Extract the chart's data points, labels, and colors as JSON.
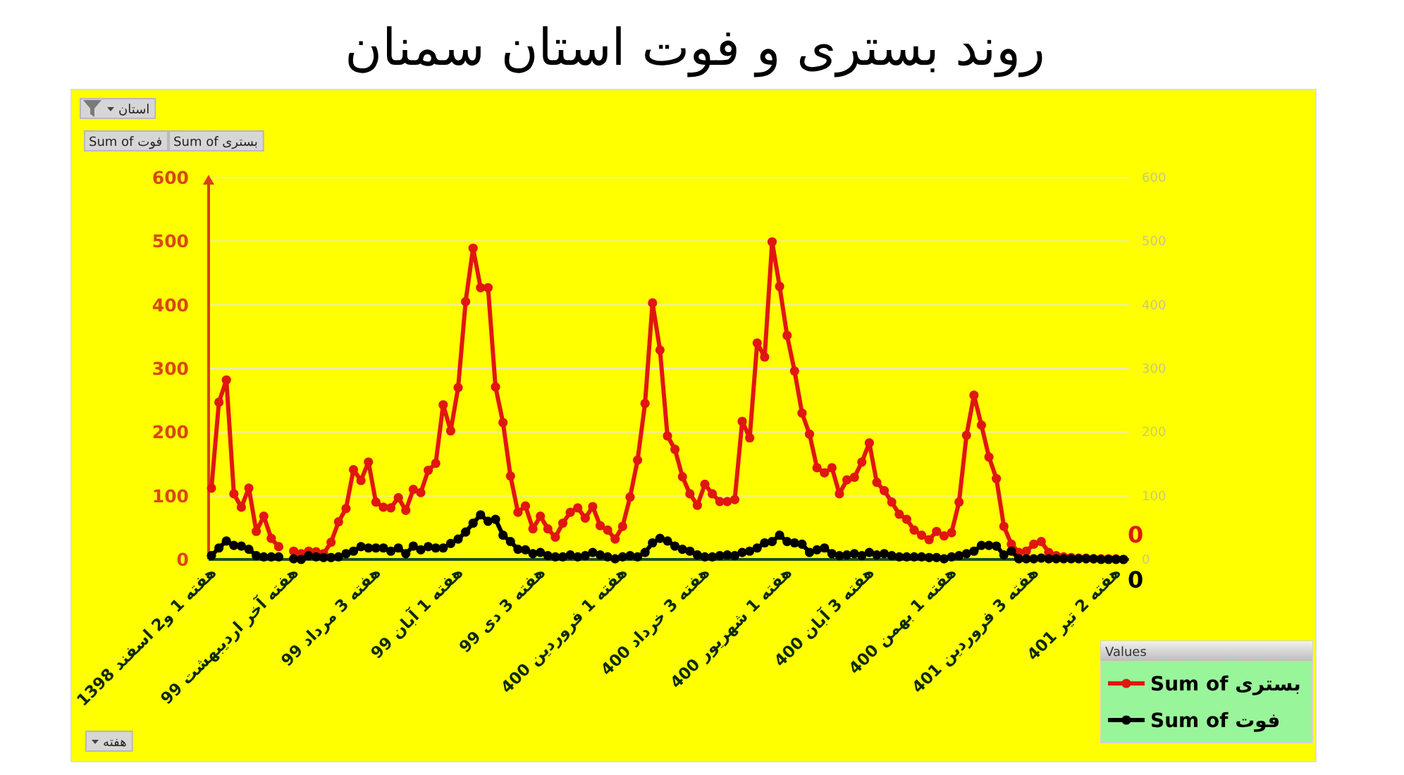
{
  "chart_data": {
    "type": "line",
    "title": "روند بستری و فوت استان سمنان",
    "categories": [
      "هفته 1 و2 اسفند 1398",
      null,
      null,
      null,
      null,
      null,
      null,
      null,
      null,
      null,
      null,
      "هفته آخر اردیبهشت 99",
      null,
      null,
      null,
      null,
      null,
      null,
      null,
      null,
      null,
      null,
      "هفته 3 مرداد 99",
      null,
      null,
      null,
      null,
      null,
      null,
      null,
      null,
      null,
      null,
      "هفته 1 آبان 99",
      null,
      null,
      null,
      null,
      null,
      null,
      null,
      null,
      null,
      null,
      "هفته 3 دی 99",
      null,
      null,
      null,
      null,
      null,
      null,
      null,
      null,
      null,
      null,
      "هفته 1 فروردین 400",
      null,
      null,
      null,
      null,
      null,
      null,
      null,
      null,
      null,
      null,
      "هفته 3 خرداد 400",
      null,
      null,
      null,
      null,
      null,
      null,
      null,
      null,
      null,
      null,
      "هفته 1 شهریور 400",
      null,
      null,
      null,
      null,
      null,
      null,
      null,
      null,
      null,
      null,
      "هفته 3 آبان 400",
      null,
      null,
      null,
      null,
      null,
      null,
      null,
      null,
      null,
      null,
      "هفته 1 بهمن 400",
      null,
      null,
      null,
      null,
      null,
      null,
      null,
      null,
      null,
      null,
      "هفته 3 فروردین 401",
      null,
      null,
      null,
      null,
      null,
      null,
      null,
      null,
      null,
      null,
      "هفته 2 تیر 401",
      null
    ],
    "series": [
      {
        "name": "Sum of بستری",
        "color": "#e0170f",
        "values": [
          112,
          247,
          282,
          103,
          82,
          112,
          44,
          68,
          33,
          20,
          null,
          13,
          9,
          13,
          12,
          9,
          27,
          59,
          80,
          141,
          124,
          153,
          90,
          82,
          81,
          97,
          77,
          110,
          105,
          140,
          151,
          243,
          202,
          270,
          405,
          489,
          427,
          427,
          271,
          215,
          131,
          74,
          84,
          48,
          68,
          48,
          35,
          57,
          74,
          81,
          65,
          83,
          53,
          46,
          32,
          52,
          98,
          156,
          245,
          403,
          329,
          194,
          173,
          130,
          103,
          85,
          118,
          103,
          91,
          91,
          94,
          217,
          191,
          340,
          318,
          499,
          429,
          352,
          296,
          230,
          197,
          144,
          136,
          144,
          103,
          125,
          129,
          153,
          183,
          121,
          108,
          90,
          71,
          63,
          46,
          38,
          31,
          44,
          37,
          42,
          90,
          195,
          258,
          211,
          161,
          127,
          52,
          24,
          11,
          13,
          24,
          28,
          11,
          6,
          4,
          3,
          2,
          2,
          1,
          1,
          1,
          1,
          0
        ],
        "value_labels": [
          null,
          null,
          null,
          null,
          null,
          null,
          null,
          null,
          null,
          null,
          null,
          null,
          null,
          null,
          null,
          null,
          null,
          null,
          null,
          null,
          null,
          null,
          null,
          null,
          null,
          null,
          null,
          null,
          null,
          null,
          null,
          null,
          null,
          null,
          null,
          null,
          null,
          null,
          null,
          null,
          null,
          null,
          null,
          null,
          null,
          null,
          null,
          null,
          null,
          null,
          null,
          null,
          null,
          null,
          null,
          null,
          null,
          null,
          null,
          null,
          null,
          null,
          null,
          null,
          null,
          null,
          null,
          null,
          null,
          null,
          null,
          null,
          null,
          null,
          null,
          null,
          null,
          null,
          null,
          null,
          null,
          null,
          null,
          null,
          null,
          null,
          null,
          null,
          null,
          null,
          null,
          null,
          null,
          null,
          null,
          null,
          null,
          null,
          null,
          null,
          null,
          null,
          null,
          null,
          null,
          null,
          null,
          null,
          null,
          null,
          null,
          null,
          null,
          null,
          null,
          null,
          null,
          null,
          null,
          null,
          null,
          null,
          "0"
        ]
      },
      {
        "name": "Sum of فوت",
        "color": "#000000",
        "values": [
          6,
          18,
          29,
          22,
          21,
          16,
          6,
          4,
          4,
          4,
          null,
          1,
          0,
          6,
          4,
          3,
          3,
          4,
          9,
          13,
          20,
          18,
          18,
          18,
          13,
          18,
          9,
          21,
          15,
          20,
          18,
          18,
          25,
          32,
          43,
          57,
          70,
          60,
          63,
          38,
          28,
          16,
          15,
          9,
          11,
          6,
          4,
          4,
          7,
          4,
          6,
          11,
          7,
          4,
          1,
          4,
          6,
          4,
          11,
          26,
          33,
          29,
          21,
          16,
          13,
          7,
          4,
          4,
          6,
          7,
          6,
          11,
          13,
          18,
          26,
          28,
          38,
          28,
          26,
          24,
          11,
          15,
          18,
          9,
          6,
          7,
          9,
          6,
          11,
          7,
          9,
          6,
          4,
          4,
          4,
          4,
          3,
          3,
          1,
          4,
          6,
          9,
          13,
          22,
          22,
          21,
          7,
          13,
          1,
          1,
          1,
          2,
          1,
          1,
          1,
          1,
          1,
          1,
          1,
          0,
          0,
          0,
          0
        ],
        "value_labels": [
          null,
          null,
          null,
          null,
          null,
          null,
          null,
          null,
          null,
          null,
          null,
          null,
          null,
          null,
          null,
          null,
          null,
          null,
          null,
          null,
          null,
          null,
          null,
          null,
          null,
          null,
          null,
          null,
          null,
          null,
          null,
          null,
          null,
          null,
          null,
          null,
          null,
          null,
          null,
          null,
          null,
          null,
          null,
          null,
          null,
          null,
          null,
          null,
          null,
          null,
          null,
          null,
          null,
          null,
          null,
          null,
          null,
          null,
          null,
          null,
          null,
          null,
          null,
          null,
          null,
          null,
          null,
          null,
          null,
          null,
          null,
          null,
          null,
          null,
          null,
          null,
          null,
          null,
          null,
          null,
          null,
          null,
          null,
          null,
          null,
          null,
          null,
          null,
          null,
          null,
          null,
          null,
          null,
          null,
          null,
          null,
          null,
          null,
          null,
          null,
          null,
          null,
          null,
          null,
          null,
          null,
          null,
          null,
          null,
          null,
          null,
          null,
          null,
          null,
          null,
          null,
          null,
          null,
          null,
          null,
          null,
          null,
          "0"
        ]
      }
    ],
    "ylim": [
      0,
      600
    ],
    "yticks": [
      0,
      100,
      200,
      300,
      400,
      500,
      600
    ],
    "y2lim": [
      0,
      600
    ],
    "y2ticks": [
      0,
      100,
      200,
      300,
      400,
      500,
      600
    ],
    "grid": "y",
    "marker": "circle",
    "legend": "bottom right",
    "legend_title": "Values",
    "annotations": [
      "استان",
      "Sum of فوت",
      "Sum of بستری",
      "هفته"
    ]
  }
}
